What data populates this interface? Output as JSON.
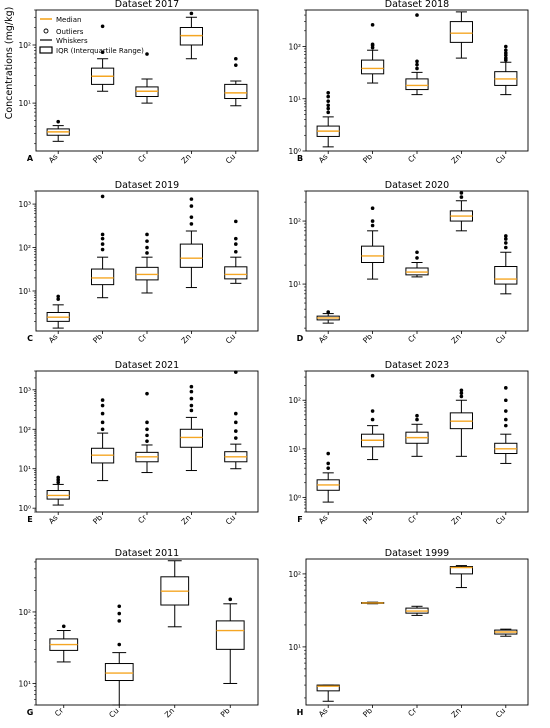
{
  "figure": {
    "ylabel": "Concentrations (mg/kg)",
    "legend": {
      "median": "Median",
      "outliers": "Outliers",
      "whiskers": "Whiskers",
      "iqr": "IQR (Interquartile Range)"
    },
    "colors": {
      "median": "#f5a623",
      "box": "#000000",
      "background": "#ffffff"
    }
  },
  "chart_data": [
    {
      "type": "boxplot",
      "letter": "A",
      "title": "Dataset 2017",
      "ylim": [
        1.5,
        400
      ],
      "yticks": [
        {
          "v": 10,
          "label": "10¹"
        },
        {
          "v": 100,
          "label": "10²"
        }
      ],
      "categories": [
        "As",
        "Pb",
        "Cr",
        "Zn",
        "Cu"
      ],
      "boxes": [
        {
          "wl": 2.2,
          "q1": 2.8,
          "med": 3.2,
          "q3": 3.6,
          "wh": 4.1,
          "outliers": [
            4.8
          ]
        },
        {
          "wl": 16,
          "q1": 21,
          "med": 29,
          "q3": 40,
          "wh": 58,
          "outliers": [
            75,
            210
          ]
        },
        {
          "wl": 10,
          "q1": 13,
          "med": 16,
          "q3": 19,
          "wh": 26,
          "outliers": [
            70
          ]
        },
        {
          "wl": 58,
          "q1": 100,
          "med": 145,
          "q3": 200,
          "wh": 300,
          "outliers": [
            350
          ]
        },
        {
          "wl": 9,
          "q1": 12,
          "med": 15,
          "q3": 21,
          "wh": 24,
          "outliers": [
            45,
            58
          ]
        }
      ]
    },
    {
      "type": "boxplot",
      "letter": "B",
      "title": "Dataset 2018",
      "ylim": [
        1,
        500
      ],
      "yticks": [
        {
          "v": 1,
          "label": "10⁰"
        },
        {
          "v": 10,
          "label": "10¹"
        },
        {
          "v": 100,
          "label": "10²"
        }
      ],
      "categories": [
        "As",
        "Pb",
        "Cr",
        "Zn",
        "Cu"
      ],
      "boxes": [
        {
          "wl": 1.2,
          "q1": 1.9,
          "med": 2.4,
          "q3": 3.0,
          "wh": 4.5,
          "outliers": [
            5.5,
            6.5,
            7.5,
            9,
            11,
            13
          ]
        },
        {
          "wl": 20,
          "q1": 30,
          "med": 38,
          "q3": 55,
          "wh": 85,
          "outliers": [
            95,
            105,
            110,
            260
          ]
        },
        {
          "wl": 12,
          "q1": 15,
          "med": 18,
          "q3": 24,
          "wh": 32,
          "outliers": [
            38,
            45,
            52,
            400
          ]
        },
        {
          "wl": 60,
          "q1": 120,
          "med": 180,
          "q3": 300,
          "wh": 460,
          "outliers": []
        },
        {
          "wl": 12,
          "q1": 18,
          "med": 24,
          "q3": 33,
          "wh": 50,
          "outliers": [
            55,
            60,
            68,
            75,
            85,
            100
          ]
        }
      ]
    },
    {
      "type": "boxplot",
      "letter": "C",
      "title": "Dataset 2019",
      "ylim": [
        1.2,
        2000
      ],
      "yticks": [
        {
          "v": 10,
          "label": "10¹"
        },
        {
          "v": 100,
          "label": "10²"
        },
        {
          "v": 1000,
          "label": "10³"
        }
      ],
      "categories": [
        "As",
        "Pb",
        "Cr",
        "Zn",
        "Cu"
      ],
      "boxes": [
        {
          "wl": 1.4,
          "q1": 2.0,
          "med": 2.5,
          "q3": 3.2,
          "wh": 4.8,
          "outliers": [
            6.5,
            7.5
          ]
        },
        {
          "wl": 7,
          "q1": 14,
          "med": 20,
          "q3": 32,
          "wh": 60,
          "outliers": [
            90,
            120,
            160,
            200,
            1500
          ]
        },
        {
          "wl": 9,
          "q1": 18,
          "med": 24,
          "q3": 35,
          "wh": 60,
          "outliers": [
            75,
            100,
            140,
            200
          ]
        },
        {
          "wl": 12,
          "q1": 35,
          "med": 57,
          "q3": 120,
          "wh": 240,
          "outliers": [
            350,
            500,
            900,
            1300
          ]
        },
        {
          "wl": 15,
          "q1": 19,
          "med": 24,
          "q3": 36,
          "wh": 60,
          "outliers": [
            80,
            120,
            160,
            400
          ]
        }
      ]
    },
    {
      "type": "boxplot",
      "letter": "D",
      "title": "Dataset 2020",
      "ylim": [
        1.8,
        300
      ],
      "yticks": [
        {
          "v": 10,
          "label": "10¹"
        },
        {
          "v": 100,
          "label": "10²"
        }
      ],
      "categories": [
        "As",
        "Pb",
        "Cr",
        "Zn",
        "Cu"
      ],
      "boxes": [
        {
          "wl": 2.4,
          "q1": 2.7,
          "med": 2.9,
          "q3": 3.1,
          "wh": 3.4,
          "outliers": [
            3.6
          ]
        },
        {
          "wl": 12,
          "q1": 22,
          "med": 28,
          "q3": 40,
          "wh": 70,
          "outliers": [
            85,
            100,
            160
          ]
        },
        {
          "wl": 13,
          "q1": 14,
          "med": 15.5,
          "q3": 18,
          "wh": 22,
          "outliers": [
            26,
            32
          ]
        },
        {
          "wl": 70,
          "q1": 100,
          "med": 120,
          "q3": 145,
          "wh": 210,
          "outliers": [
            240,
            280
          ]
        },
        {
          "wl": 7,
          "q1": 10,
          "med": 12,
          "q3": 19,
          "wh": 32,
          "outliers": [
            38,
            45,
            52,
            58
          ]
        }
      ]
    },
    {
      "type": "boxplot",
      "letter": "E",
      "title": "Dataset 2021",
      "ylim": [
        0.8,
        3000
      ],
      "yticks": [
        {
          "v": 1,
          "label": "10⁰"
        },
        {
          "v": 10,
          "label": "10¹"
        },
        {
          "v": 100,
          "label": "10²"
        },
        {
          "v": 1000,
          "label": "10³"
        }
      ],
      "categories": [
        "As",
        "Pb",
        "Cr",
        "Zn",
        "Cu"
      ],
      "boxes": [
        {
          "wl": 1.2,
          "q1": 1.7,
          "med": 2.1,
          "q3": 2.8,
          "wh": 4.0,
          "outliers": [
            4.5,
            5.2,
            6
          ]
        },
        {
          "wl": 5,
          "q1": 14,
          "med": 22,
          "q3": 33,
          "wh": 80,
          "outliers": [
            100,
            150,
            250,
            400,
            550
          ]
        },
        {
          "wl": 8,
          "q1": 15,
          "med": 20,
          "q3": 26,
          "wh": 40,
          "outliers": [
            50,
            70,
            100,
            150,
            800
          ]
        },
        {
          "wl": 9,
          "q1": 35,
          "med": 62,
          "q3": 100,
          "wh": 200,
          "outliers": [
            300,
            400,
            600,
            900,
            1200
          ]
        },
        {
          "wl": 10,
          "q1": 15,
          "med": 20,
          "q3": 27,
          "wh": 42,
          "outliers": [
            60,
            90,
            150,
            250,
            2800
          ]
        }
      ]
    },
    {
      "type": "boxplot",
      "letter": "F",
      "title": "Dataset 2023",
      "ylim": [
        0.5,
        400
      ],
      "yticks": [
        {
          "v": 1,
          "label": "10⁰"
        },
        {
          "v": 10,
          "label": "10¹"
        },
        {
          "v": 100,
          "label": "10²"
        }
      ],
      "categories": [
        "As",
        "Pb",
        "Cr",
        "Zn",
        "Cu"
      ],
      "boxes": [
        {
          "wl": 0.8,
          "q1": 1.4,
          "med": 1.8,
          "q3": 2.3,
          "wh": 3.2,
          "outliers": [
            4,
            5,
            8
          ]
        },
        {
          "wl": 6,
          "q1": 11,
          "med": 15,
          "q3": 20,
          "wh": 30,
          "outliers": [
            40,
            60,
            320
          ]
        },
        {
          "wl": 7,
          "q1": 13,
          "med": 17,
          "q3": 22,
          "wh": 32,
          "outliers": [
            40,
            48
          ]
        },
        {
          "wl": 7,
          "q1": 26,
          "med": 37,
          "q3": 55,
          "wh": 100,
          "outliers": [
            120,
            140,
            160
          ]
        },
        {
          "wl": 5,
          "q1": 8,
          "med": 10,
          "q3": 13,
          "wh": 20,
          "outliers": [
            30,
            40,
            60,
            100,
            180
          ]
        }
      ]
    },
    {
      "type": "boxplot",
      "letter": "G",
      "title": "Dataset 2011",
      "ylim": [
        5,
        550
      ],
      "yticks": [
        {
          "v": 10,
          "label": "10¹"
        },
        {
          "v": 100,
          "label": "10²"
        }
      ],
      "categories": [
        "Cr",
        "Cu",
        "Zn",
        "Pb"
      ],
      "boxes": [
        {
          "wl": 20,
          "q1": 29,
          "med": 35,
          "q3": 42,
          "wh": 55,
          "outliers": [
            63
          ]
        },
        {
          "wl": 5,
          "q1": 11,
          "med": 14,
          "q3": 19,
          "wh": 27,
          "outliers": [
            35,
            75,
            95,
            120
          ]
        },
        {
          "wl": 62,
          "q1": 125,
          "med": 195,
          "q3": 310,
          "wh": 520,
          "outliers": []
        },
        {
          "wl": 10,
          "q1": 30,
          "med": 55,
          "q3": 75,
          "wh": 130,
          "outliers": [
            150
          ]
        }
      ]
    },
    {
      "type": "boxplot",
      "letter": "H",
      "title": "Dataset 1999",
      "ylim": [
        1.6,
        160
      ],
      "yticks": [
        {
          "v": 10,
          "label": "10¹"
        },
        {
          "v": 100,
          "label": "10²"
        }
      ],
      "categories": [
        "As",
        "Pb",
        "Cr",
        "Zn",
        "Cu"
      ],
      "boxes": [
        {
          "wl": 1.8,
          "q1": 2.5,
          "med": 2.9,
          "q3": 3.0,
          "wh": 3.0,
          "outliers": []
        },
        {
          "wl": 39,
          "q1": 39.5,
          "med": 40,
          "q3": 40.5,
          "wh": 41,
          "outliers": []
        },
        {
          "wl": 27,
          "q1": 29,
          "med": 31,
          "q3": 34,
          "wh": 36,
          "outliers": []
        },
        {
          "wl": 65,
          "q1": 100,
          "med": 122,
          "q3": 126,
          "wh": 130,
          "outliers": []
        },
        {
          "wl": 14,
          "q1": 15,
          "med": 16,
          "q3": 17,
          "wh": 17.5,
          "outliers": []
        }
      ]
    }
  ]
}
